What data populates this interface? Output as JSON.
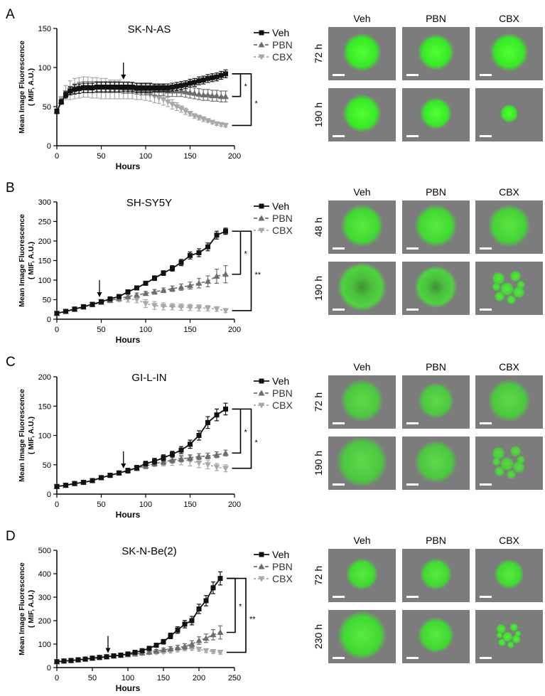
{
  "colors": {
    "veh": "#111111",
    "pbn": "#6d6d6d",
    "cbx": "#a8a8a8",
    "cell_bg": "#7c7c7c",
    "cell_green": "#33ee22",
    "scale_bar": "#ffffff"
  },
  "icons": {
    "arrow": "treatment-arrow-icon"
  },
  "image_columns": [
    "Veh",
    "PBN",
    "CBX"
  ],
  "chart_data": [
    {
      "panel": "A",
      "type": "line",
      "title": "SK-N-AS",
      "xlabel": "Hours",
      "ylabel": "Mean Image Fluorescence",
      "ylabel2": "( MIF, A.U.)",
      "xlim": [
        0,
        200
      ],
      "ylim": [
        0,
        150
      ],
      "xticks": [
        0,
        50,
        100,
        150,
        200
      ],
      "yticks": [
        0,
        50,
        100,
        150
      ],
      "arrow_x": 75,
      "legend": [
        "Veh",
        "PBN",
        "CBX"
      ],
      "legend_position": "top-right",
      "significance": [
        "*",
        "*"
      ],
      "x": [
        0,
        5,
        10,
        15,
        20,
        25,
        30,
        35,
        40,
        45,
        50,
        55,
        60,
        65,
        70,
        75,
        80,
        85,
        90,
        95,
        100,
        105,
        110,
        115,
        120,
        125,
        130,
        135,
        140,
        145,
        150,
        155,
        160,
        165,
        170,
        175,
        180,
        185,
        190
      ],
      "series": [
        {
          "name": "Veh",
          "values": [
            44,
            56,
            65,
            70,
            72,
            73,
            74,
            74,
            74,
            75,
            75,
            75,
            75,
            75,
            75,
            75,
            75,
            75,
            74,
            74,
            74,
            74,
            74,
            74,
            74,
            74,
            75,
            76,
            77,
            78,
            80,
            81,
            83,
            84,
            86,
            87,
            88,
            90,
            92
          ],
          "errors": [
            3,
            3,
            4,
            5,
            6,
            6,
            6,
            6,
            6,
            6,
            6,
            6,
            6,
            6,
            6,
            6,
            6,
            6,
            6,
            6,
            6,
            6,
            5,
            5,
            5,
            5,
            5,
            5,
            5,
            5,
            5,
            5,
            5,
            5,
            5,
            5,
            5,
            5,
            5
          ]
        },
        {
          "name": "PBN",
          "values": [
            44,
            57,
            66,
            71,
            73,
            74,
            75,
            75,
            75,
            75,
            75,
            75,
            75,
            75,
            75,
            74,
            74,
            74,
            73,
            72,
            72,
            72,
            71,
            71,
            71,
            70,
            70,
            70,
            70,
            69,
            68,
            67,
            66,
            65,
            65,
            64,
            64,
            63,
            63
          ],
          "errors": [
            3,
            3,
            4,
            5,
            6,
            7,
            7,
            7,
            7,
            7,
            7,
            7,
            7,
            7,
            7,
            7,
            7,
            7,
            7,
            7,
            7,
            7,
            7,
            7,
            7,
            7,
            7,
            7,
            7,
            7,
            7,
            7,
            7,
            7,
            7,
            7,
            7,
            7,
            7
          ]
        },
        {
          "name": "CBX",
          "values": [
            44,
            60,
            68,
            71,
            73,
            74,
            75,
            75,
            74,
            74,
            73,
            73,
            72,
            72,
            72,
            71,
            71,
            70,
            69,
            68,
            67,
            65,
            63,
            61,
            59,
            56,
            53,
            50,
            47,
            44,
            41,
            38,
            36,
            34,
            32,
            30,
            28,
            27,
            26
          ],
          "errors": [
            3,
            3,
            9,
            12,
            13,
            13,
            13,
            13,
            13,
            13,
            13,
            13,
            12,
            12,
            12,
            11,
            11,
            10,
            10,
            9,
            9,
            8,
            8,
            7,
            7,
            6,
            6,
            5,
            4,
            4,
            3,
            3,
            3,
            3,
            2,
            2,
            2,
            2,
            2
          ]
        }
      ],
      "images": {
        "rows": [
          "72 h",
          "190 h"
        ],
        "cells": [
          [
            {
              "size": 0.36,
              "intensity": 1.0,
              "fragmented": false,
              "hollow": false
            },
            {
              "size": 0.34,
              "intensity": 1.0,
              "fragmented": false,
              "hollow": false
            },
            {
              "size": 0.36,
              "intensity": 1.0,
              "fragmented": false,
              "hollow": false
            }
          ],
          [
            {
              "size": 0.36,
              "intensity": 1.0,
              "fragmented": false,
              "hollow": false
            },
            {
              "size": 0.3,
              "intensity": 1.0,
              "fragmented": false,
              "hollow": false
            },
            {
              "size": 0.17,
              "intensity": 1.0,
              "fragmented": false,
              "hollow": false
            }
          ]
        ]
      }
    },
    {
      "panel": "B",
      "type": "line",
      "title": "SH-SY5Y",
      "xlabel": "Hours",
      "ylabel": "Mean Image Fluorescence",
      "ylabel2": "( MIF, A.U.)",
      "xlim": [
        0,
        200
      ],
      "ylim": [
        0,
        300
      ],
      "xticks": [
        0,
        50,
        100,
        150,
        200
      ],
      "yticks": [
        0,
        50,
        100,
        150,
        200,
        250,
        300
      ],
      "arrow_x": 48,
      "legend": [
        "Veh",
        "PBN",
        "CBX"
      ],
      "legend_position": "top-right",
      "significance": [
        "*",
        "**"
      ],
      "x": [
        0,
        10,
        20,
        30,
        40,
        50,
        60,
        70,
        80,
        90,
        100,
        110,
        120,
        130,
        140,
        150,
        160,
        170,
        180,
        190
      ],
      "series": [
        {
          "name": "Veh",
          "values": [
            15,
            20,
            26,
            32,
            38,
            45,
            52,
            58,
            70,
            80,
            92,
            105,
            118,
            130,
            145,
            163,
            170,
            185,
            215,
            225
          ],
          "errors": [
            2,
            2,
            3,
            3,
            3,
            4,
            4,
            4,
            5,
            5,
            5,
            6,
            6,
            7,
            8,
            9,
            10,
            10,
            10,
            8
          ]
        },
        {
          "name": "PBN",
          "values": [
            15,
            20,
            25,
            31,
            37,
            43,
            48,
            53,
            58,
            62,
            66,
            70,
            74,
            78,
            82,
            86,
            92,
            97,
            110,
            115
          ],
          "errors": [
            2,
            2,
            3,
            3,
            3,
            4,
            4,
            4,
            5,
            5,
            5,
            6,
            6,
            7,
            8,
            9,
            12,
            14,
            18,
            22
          ]
        },
        {
          "name": "CBX",
          "values": [
            15,
            20,
            26,
            32,
            38,
            44,
            48,
            51,
            51,
            50,
            40,
            35,
            33,
            32,
            31,
            30,
            29,
            28,
            26,
            22
          ],
          "errors": [
            2,
            2,
            3,
            3,
            3,
            4,
            5,
            6,
            7,
            8,
            10,
            10,
            9,
            8,
            8,
            8,
            8,
            7,
            6,
            5
          ]
        }
      ],
      "images": {
        "rows": [
          "48 h",
          "190 h"
        ],
        "cells": [
          [
            {
              "size": 0.4,
              "intensity": 0.85,
              "fragmented": false,
              "hollow": false
            },
            {
              "size": 0.4,
              "intensity": 0.85,
              "fragmented": false,
              "hollow": false
            },
            {
              "size": 0.4,
              "intensity": 0.8,
              "fragmented": false,
              "hollow": false
            }
          ],
          [
            {
              "size": 0.46,
              "intensity": 0.85,
              "fragmented": false,
              "hollow": true
            },
            {
              "size": 0.4,
              "intensity": 0.85,
              "fragmented": false,
              "hollow": true
            },
            {
              "size": 0.4,
              "intensity": 0.8,
              "fragmented": true,
              "hollow": false
            }
          ]
        ]
      }
    },
    {
      "panel": "C",
      "type": "line",
      "title": "GI-L-IN",
      "xlabel": "Hours",
      "ylabel": "Mean Image Fluorescence",
      "ylabel2": "( MIF, A.U.)",
      "xlim": [
        0,
        200
      ],
      "ylim": [
        0,
        200
      ],
      "xticks": [
        0,
        50,
        100,
        150,
        200
      ],
      "yticks": [
        0,
        50,
        100,
        150,
        200
      ],
      "arrow_x": 75,
      "legend": [
        "Veh",
        "PBN",
        "CBX"
      ],
      "legend_position": "top-right",
      "significance": [
        "*",
        "*"
      ],
      "x": [
        0,
        10,
        20,
        30,
        40,
        50,
        60,
        70,
        80,
        90,
        100,
        110,
        120,
        130,
        140,
        150,
        160,
        170,
        180,
        190
      ],
      "series": [
        {
          "name": "Veh",
          "values": [
            13,
            15,
            18,
            20,
            23,
            28,
            32,
            36,
            40,
            45,
            52,
            56,
            62,
            68,
            75,
            85,
            100,
            122,
            135,
            145
          ],
          "errors": [
            2,
            2,
            2,
            2,
            3,
            3,
            3,
            3,
            4,
            4,
            4,
            5,
            5,
            5,
            6,
            7,
            8,
            10,
            10,
            10
          ]
        },
        {
          "name": "PBN",
          "values": [
            13,
            15,
            18,
            20,
            23,
            28,
            32,
            36,
            40,
            44,
            48,
            52,
            55,
            58,
            60,
            62,
            64,
            65,
            67,
            70
          ],
          "errors": [
            2,
            2,
            2,
            2,
            3,
            3,
            3,
            3,
            4,
            4,
            4,
            4,
            5,
            5,
            5,
            5,
            5,
            5,
            5,
            5
          ]
        },
        {
          "name": "CBX",
          "values": [
            13,
            15,
            18,
            20,
            23,
            28,
            32,
            36,
            40,
            44,
            48,
            52,
            54,
            56,
            58,
            57,
            53,
            50,
            46,
            44
          ],
          "errors": [
            2,
            2,
            2,
            2,
            3,
            3,
            3,
            3,
            4,
            4,
            5,
            5,
            6,
            7,
            8,
            9,
            8,
            7,
            6,
            6
          ]
        }
      ],
      "images": {
        "rows": [
          "72 h",
          "190 h"
        ],
        "cells": [
          [
            {
              "size": 0.4,
              "intensity": 0.7,
              "fragmented": false,
              "hollow": false
            },
            {
              "size": 0.34,
              "intensity": 0.7,
              "fragmented": false,
              "hollow": false
            },
            {
              "size": 0.4,
              "intensity": 0.7,
              "fragmented": false,
              "hollow": false
            }
          ],
          [
            {
              "size": 0.48,
              "intensity": 0.7,
              "fragmented": false,
              "hollow": false
            },
            {
              "size": 0.4,
              "intensity": 0.7,
              "fragmented": false,
              "hollow": false
            },
            {
              "size": 0.4,
              "intensity": 0.7,
              "fragmented": true,
              "hollow": false
            }
          ]
        ]
      }
    },
    {
      "panel": "D",
      "type": "line",
      "title": "SK-N-Be(2)",
      "xlabel": "Hours",
      "ylabel": "Mean Image Fluorescence",
      "ylabel2": "( MIF, A.U.)",
      "xlim": [
        0,
        250
      ],
      "ylim": [
        0,
        500
      ],
      "xticks": [
        0,
        50,
        100,
        150,
        200,
        250
      ],
      "yticks": [
        0,
        100,
        200,
        300,
        400,
        500
      ],
      "arrow_x": 72,
      "legend": [
        "Veh",
        "PBN",
        "CBX"
      ],
      "legend_position": "top-right",
      "significance": [
        "*",
        "**"
      ],
      "x": [
        0,
        10,
        20,
        30,
        40,
        50,
        60,
        70,
        80,
        90,
        100,
        110,
        120,
        130,
        140,
        150,
        160,
        170,
        180,
        190,
        200,
        210,
        220,
        230
      ],
      "series": [
        {
          "name": "Veh",
          "values": [
            25,
            28,
            30,
            33,
            36,
            40,
            43,
            46,
            50,
            53,
            58,
            65,
            72,
            82,
            95,
            110,
            135,
            160,
            185,
            200,
            250,
            285,
            340,
            380
          ],
          "errors": [
            3,
            3,
            3,
            3,
            4,
            4,
            4,
            4,
            5,
            5,
            5,
            6,
            6,
            7,
            8,
            10,
            12,
            14,
            16,
            18,
            20,
            22,
            25,
            28
          ]
        },
        {
          "name": "PBN",
          "values": [
            25,
            28,
            30,
            33,
            36,
            40,
            43,
            46,
            49,
            52,
            55,
            58,
            62,
            66,
            70,
            75,
            80,
            85,
            90,
            100,
            115,
            125,
            140,
            150
          ],
          "errors": [
            3,
            3,
            3,
            3,
            4,
            4,
            4,
            4,
            5,
            5,
            5,
            5,
            6,
            6,
            7,
            8,
            9,
            10,
            12,
            14,
            16,
            18,
            22,
            28
          ]
        },
        {
          "name": "CBX",
          "values": [
            25,
            28,
            30,
            33,
            36,
            40,
            43,
            46,
            49,
            52,
            55,
            58,
            60,
            62,
            64,
            66,
            70,
            75,
            80,
            82,
            78,
            72,
            68,
            65
          ],
          "errors": [
            3,
            3,
            3,
            3,
            4,
            4,
            4,
            4,
            5,
            5,
            5,
            5,
            5,
            5,
            6,
            6,
            7,
            8,
            8,
            8,
            8,
            8,
            8,
            8
          ]
        }
      ],
      "images": {
        "rows": [
          "72 h",
          "230 h"
        ],
        "cells": [
          [
            {
              "size": 0.3,
              "intensity": 0.85,
              "fragmented": false,
              "hollow": false
            },
            {
              "size": 0.3,
              "intensity": 0.85,
              "fragmented": false,
              "hollow": false
            },
            {
              "size": 0.28,
              "intensity": 0.85,
              "fragmented": false,
              "hollow": false
            }
          ],
          [
            {
              "size": 0.46,
              "intensity": 0.85,
              "fragmented": false,
              "hollow": false
            },
            {
              "size": 0.34,
              "intensity": 0.85,
              "fragmented": false,
              "hollow": false
            },
            {
              "size": 0.3,
              "intensity": 0.85,
              "fragmented": true,
              "hollow": false
            }
          ]
        ]
      }
    }
  ]
}
